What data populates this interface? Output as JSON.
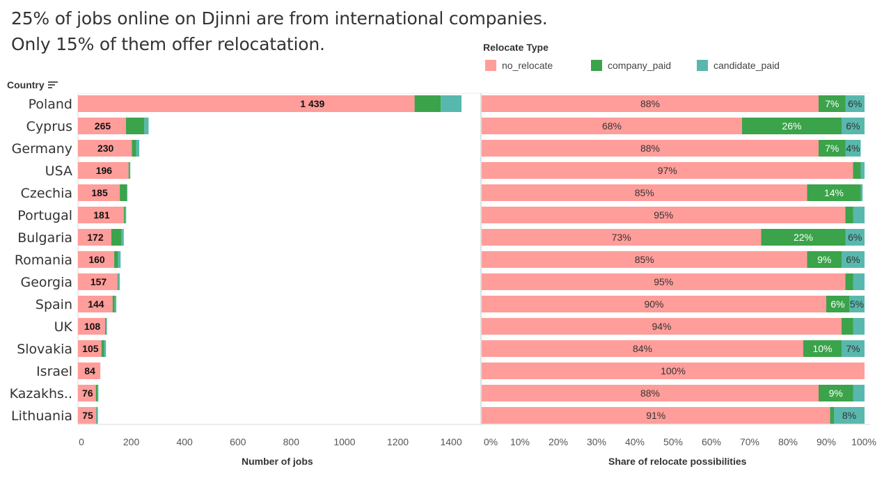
{
  "title": {
    "line1": "25% of jobs online on Djinni are from international companies.",
    "line2": "Only 15% of them offer relocatation."
  },
  "legend": {
    "title": "Relocate Type",
    "items": [
      {
        "key": "no_relocate",
        "label": "no_relocate",
        "color": "#ff9d9a"
      },
      {
        "key": "company_paid",
        "label": "company_paid",
        "color": "#3ba34a"
      },
      {
        "key": "candidate_paid",
        "label": "candidate_paid",
        "color": "#59b8ad"
      }
    ]
  },
  "country_header": "Country",
  "chart_data": [
    {
      "type": "bar",
      "orientation": "horizontal",
      "stacked": true,
      "xlabel": "Number of jobs",
      "xlim": [
        0,
        1450
      ],
      "xticks": [
        0,
        200,
        400,
        600,
        800,
        1000,
        1200,
        1400
      ],
      "xtick_labels": [
        "0",
        "200",
        "400",
        "600",
        "800",
        "1000",
        "1200",
        "1400"
      ],
      "categories": [
        "Poland",
        "Cyprus",
        "Germany",
        "USA",
        "Czechia",
        "Portugal",
        "Bulgaria",
        "Romania",
        "Georgia",
        "Spain",
        "UK",
        "Slovakia",
        "Israel",
        "Kazakhs..",
        "Lithuania"
      ],
      "totals": [
        1439,
        265,
        230,
        196,
        185,
        181,
        172,
        160,
        157,
        144,
        108,
        105,
        84,
        76,
        75
      ],
      "total_labels": [
        "1 439",
        "265",
        "230",
        "196",
        "185",
        "181",
        "172",
        "160",
        "157",
        "144",
        "108",
        "105",
        "84",
        "76",
        "75"
      ],
      "series": [
        {
          "name": "no_relocate",
          "values": [
            1263,
            180,
            202,
            190,
            157,
            172,
            125,
            136,
            149,
            130,
            102,
            88,
            84,
            67,
            68
          ]
        },
        {
          "name": "company_paid",
          "values": [
            98,
            69,
            16,
            4,
            26,
            5,
            38,
            14,
            3,
            8,
            4,
            10,
            0,
            7,
            1
          ]
        },
        {
          "name": "candidate_paid",
          "values": [
            78,
            16,
            12,
            2,
            2,
            4,
            9,
            10,
            5,
            6,
            2,
            7,
            0,
            2,
            6
          ]
        }
      ]
    },
    {
      "type": "bar",
      "orientation": "horizontal",
      "stacked": true,
      "percent": true,
      "xlabel": "Share of relocate possibilities",
      "xlim": [
        0,
        100
      ],
      "xticks": [
        0,
        10,
        20,
        30,
        40,
        50,
        60,
        70,
        80,
        90,
        100
      ],
      "xtick_labels": [
        "0%",
        "10%",
        "20%",
        "30%",
        "40%",
        "50%",
        "60%",
        "70%",
        "80%",
        "90%",
        "100%"
      ],
      "categories": [
        "Poland",
        "Cyprus",
        "Germany",
        "USA",
        "Czechia",
        "Portugal",
        "Bulgaria",
        "Romania",
        "Georgia",
        "Spain",
        "UK",
        "Slovakia",
        "Israel",
        "Kazakhs..",
        "Lithuania"
      ],
      "series": [
        {
          "name": "no_relocate",
          "values": [
            88,
            68,
            88,
            97,
            85,
            95,
            73,
            85,
            95,
            90,
            94,
            84,
            100,
            88,
            91
          ],
          "labels": [
            "88%",
            "68%",
            "88%",
            "97%",
            "85%",
            "95%",
            "73%",
            "85%",
            "95%",
            "90%",
            "94%",
            "84%",
            "100%",
            "88%",
            "91%"
          ]
        },
        {
          "name": "company_paid",
          "values": [
            7,
            26,
            7,
            2,
            14,
            2,
            22,
            9,
            2,
            6,
            3,
            10,
            0,
            9,
            1
          ],
          "labels": [
            "7%",
            "26%",
            "7%",
            "",
            "14%",
            "",
            "22%",
            "9%",
            "",
            "6%",
            "",
            "10%",
            "",
            "9%",
            ""
          ]
        },
        {
          "name": "candidate_paid",
          "values": [
            6,
            6,
            4,
            1,
            0.5,
            3,
            6,
            6,
            3,
            5,
            3,
            7,
            0,
            3,
            8
          ],
          "labels": [
            "6%",
            "6%",
            "4%",
            "",
            "",
            "",
            "6%",
            "6%",
            "",
            "5%",
            "",
            "7%",
            "",
            "",
            "8%"
          ]
        }
      ]
    }
  ]
}
